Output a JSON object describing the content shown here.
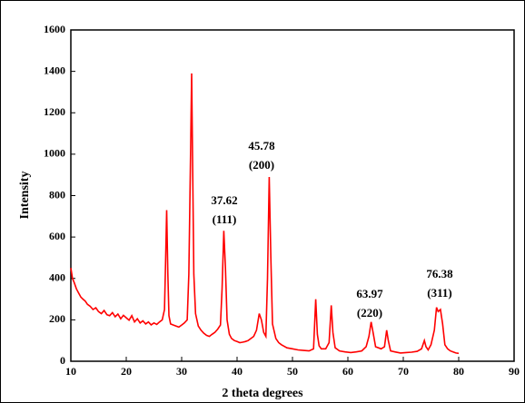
{
  "chart_data": {
    "type": "line",
    "color": "#ff0000",
    "xlabel": "2 theta degrees",
    "ylabel": "Intensity",
    "xlim": [
      10,
      90
    ],
    "ylim": [
      0,
      1600
    ],
    "xticks": [
      10,
      20,
      30,
      40,
      50,
      60,
      70,
      80,
      90
    ],
    "yticks": [
      0,
      200,
      400,
      600,
      800,
      1000,
      1200,
      1400,
      1600
    ],
    "annotations": [
      [
        "37.62",
        "(111)"
      ],
      [
        "45.78",
        "(200)"
      ],
      [
        "63.97",
        "(220)"
      ],
      [
        "76.38",
        "(311)"
      ]
    ],
    "x": [
      10,
      10.3,
      10.6,
      11,
      11.4,
      11.8,
      12.2,
      12.6,
      13,
      13.5,
      14,
      14.5,
      15,
      15.5,
      16,
      16.5,
      17,
      17.5,
      18,
      18.5,
      19,
      19.5,
      20,
      20.5,
      21,
      21.5,
      22,
      22.5,
      23,
      23.5,
      24,
      24.5,
      25,
      25.5,
      26,
      26.5,
      26.9,
      27.1,
      27.3,
      27.5,
      27.7,
      28,
      28.5,
      29,
      29.5,
      30,
      30.5,
      31,
      31.3,
      31.6,
      31.8,
      32,
      32.2,
      32.5,
      33,
      33.5,
      34,
      34.5,
      35,
      35.5,
      36,
      36.5,
      37,
      37.3,
      37.6,
      37.9,
      38.2,
      38.6,
      39,
      39.5,
      40,
      40.5,
      41,
      41.5,
      42,
      42.5,
      43,
      43.5,
      44,
      44.4,
      44.8,
      45.2,
      45.5,
      45.8,
      46.1,
      46.4,
      47,
      47.5,
      48,
      49,
      50,
      51,
      52,
      53,
      53.8,
      54.2,
      54.5,
      54.8,
      55.2,
      56,
      56.6,
      57,
      57.3,
      57.7,
      58.5,
      59.5,
      60.5,
      61.5,
      62.5,
      63.3,
      63.8,
      64.2,
      64.6,
      65,
      66,
      66.6,
      67,
      67.3,
      67.7,
      68.5,
      69.5,
      70.5,
      71.5,
      72.5,
      73.3,
      73.8,
      74.1,
      74.5,
      75,
      75.6,
      76,
      76.3,
      76.7,
      77.1,
      77.5,
      78,
      78.5,
      79,
      79.5,
      80
    ],
    "values": [
      450,
      400,
      380,
      350,
      330,
      310,
      300,
      290,
      275,
      265,
      250,
      258,
      240,
      230,
      245,
      225,
      220,
      235,
      215,
      228,
      205,
      222,
      210,
      198,
      220,
      190,
      205,
      185,
      195,
      180,
      190,
      176,
      185,
      178,
      190,
      200,
      250,
      480,
      730,
      420,
      220,
      180,
      175,
      170,
      165,
      175,
      185,
      200,
      420,
      1000,
      1390,
      900,
      420,
      230,
      170,
      150,
      135,
      125,
      120,
      130,
      140,
      155,
      175,
      350,
      630,
      450,
      200,
      130,
      110,
      100,
      95,
      90,
      92,
      95,
      100,
      110,
      120,
      150,
      230,
      200,
      140,
      120,
      400,
      890,
      500,
      180,
      110,
      90,
      80,
      65,
      60,
      55,
      52,
      50,
      60,
      300,
      130,
      75,
      60,
      60,
      90,
      270,
      140,
      65,
      50,
      45,
      42,
      45,
      50,
      70,
      120,
      190,
      130,
      70,
      60,
      70,
      150,
      100,
      50,
      45,
      40,
      42,
      44,
      48,
      60,
      100,
      70,
      55,
      80,
      150,
      260,
      240,
      250,
      180,
      80,
      60,
      50,
      45,
      40,
      38
    ]
  }
}
